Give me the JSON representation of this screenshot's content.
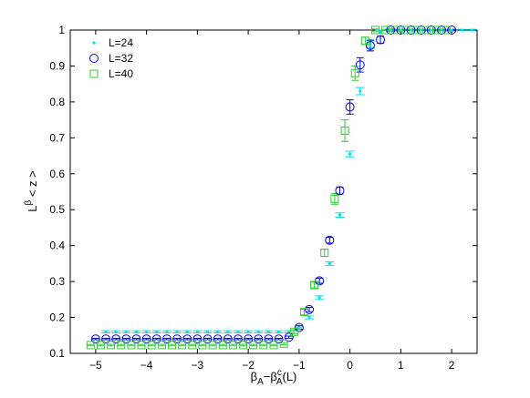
{
  "chart_data": {
    "type": "scatter",
    "title": "",
    "xlabel": {
      "base": "β",
      "sub1": "A",
      "mid": "−β",
      "sup": "c",
      "sub2": "A",
      "tail": "(L)"
    },
    "ylabel": {
      "pre": "L",
      "sup": "β",
      "post": " < z >"
    },
    "xlim": [
      -5.5,
      2.5
    ],
    "ylim": [
      0.1,
      1.0
    ],
    "xticks": [
      -5,
      -4,
      -3,
      -2,
      -1,
      0,
      1,
      2
    ],
    "xtick_labels": [
      "−5",
      "−4",
      "−3",
      "−2",
      "−1",
      "0",
      "1",
      "2"
    ],
    "yticks": [
      0.1,
      0.2,
      0.3,
      0.4,
      0.5,
      0.6,
      0.7,
      0.8,
      0.9,
      1.0
    ],
    "ytick_labels": [
      "0.1",
      "0.2",
      "0.3",
      "0.4",
      "0.5",
      "0.6",
      "0.7",
      "0.8",
      "0.9",
      "1"
    ],
    "grid": false,
    "legend_position": "top-left",
    "series": [
      {
        "name": "L=24",
        "marker": "dot",
        "color": "#00e5e5",
        "points": [
          [
            -4.8,
            0.16
          ],
          [
            -4.6,
            0.16
          ],
          [
            -4.4,
            0.16
          ],
          [
            -4.2,
            0.16
          ],
          [
            -4.0,
            0.16
          ],
          [
            -3.8,
            0.16
          ],
          [
            -3.6,
            0.16
          ],
          [
            -3.4,
            0.16
          ],
          [
            -3.2,
            0.16
          ],
          [
            -3.0,
            0.16
          ],
          [
            -2.8,
            0.16
          ],
          [
            -2.6,
            0.16
          ],
          [
            -2.4,
            0.16
          ],
          [
            -2.2,
            0.16
          ],
          [
            -2.0,
            0.16
          ],
          [
            -1.8,
            0.16
          ],
          [
            -1.6,
            0.16
          ],
          [
            -1.4,
            0.16
          ],
          [
            -1.2,
            0.16
          ],
          [
            -1.0,
            0.17
          ],
          [
            -0.8,
            0.2
          ],
          [
            -0.6,
            0.255
          ],
          [
            -0.4,
            0.35
          ],
          [
            -0.2,
            0.485
          ],
          [
            0.0,
            0.655
          ],
          [
            0.2,
            0.83
          ],
          [
            0.4,
            0.96
          ],
          [
            0.6,
            0.995
          ],
          [
            0.8,
            1.0
          ],
          [
            1.0,
            1.0
          ],
          [
            1.2,
            1.0
          ],
          [
            1.4,
            1.0
          ],
          [
            1.6,
            1.0
          ],
          [
            1.8,
            1.0
          ],
          [
            2.0,
            1.0
          ],
          [
            2.2,
            1.0
          ],
          [
            2.4,
            1.0
          ]
        ],
        "errors": [
          0.003,
          0.003,
          0.003,
          0.003,
          0.003,
          0.003,
          0.003,
          0.003,
          0.003,
          0.003,
          0.003,
          0.003,
          0.003,
          0.003,
          0.003,
          0.003,
          0.003,
          0.003,
          0.003,
          0.003,
          0.004,
          0.005,
          0.005,
          0.006,
          0.008,
          0.01,
          0.01,
          0.005,
          0.002,
          0.002,
          0.002,
          0.002,
          0.002,
          0.002,
          0.002,
          0.002,
          0.002
        ]
      },
      {
        "name": "L=32",
        "marker": "circle",
        "color": "#0000ff",
        "points": [
          [
            -5.0,
            0.14
          ],
          [
            -4.8,
            0.14
          ],
          [
            -4.6,
            0.14
          ],
          [
            -4.4,
            0.14
          ],
          [
            -4.2,
            0.14
          ],
          [
            -4.0,
            0.14
          ],
          [
            -3.8,
            0.14
          ],
          [
            -3.6,
            0.14
          ],
          [
            -3.4,
            0.14
          ],
          [
            -3.2,
            0.14
          ],
          [
            -3.0,
            0.14
          ],
          [
            -2.8,
            0.14
          ],
          [
            -2.6,
            0.14
          ],
          [
            -2.4,
            0.14
          ],
          [
            -2.2,
            0.14
          ],
          [
            -2.0,
            0.14
          ],
          [
            -1.8,
            0.14
          ],
          [
            -1.6,
            0.14
          ],
          [
            -1.4,
            0.14
          ],
          [
            -1.2,
            0.145
          ],
          [
            -1.0,
            0.172
          ],
          [
            -0.8,
            0.222
          ],
          [
            -0.6,
            0.302
          ],
          [
            -0.4,
            0.415
          ],
          [
            -0.2,
            0.553
          ],
          [
            0.0,
            0.786
          ],
          [
            0.2,
            0.903
          ],
          [
            0.4,
            0.957
          ],
          [
            0.6,
            0.973
          ],
          [
            0.8,
            1.0
          ],
          [
            1.0,
            1.0
          ],
          [
            1.2,
            1.0
          ],
          [
            1.4,
            1.0
          ],
          [
            1.6,
            1.0
          ],
          [
            1.8,
            1.0
          ],
          [
            2.0,
            1.0
          ]
        ],
        "errors": [
          0.002,
          0.002,
          0.002,
          0.002,
          0.002,
          0.002,
          0.002,
          0.002,
          0.002,
          0.002,
          0.002,
          0.002,
          0.002,
          0.002,
          0.002,
          0.002,
          0.002,
          0.002,
          0.002,
          0.003,
          0.005,
          0.006,
          0.007,
          0.008,
          0.01,
          0.02,
          0.02,
          0.015,
          0.01,
          0.003,
          0.002,
          0.002,
          0.002,
          0.002,
          0.002,
          0.002
        ]
      },
      {
        "name": "L=40",
        "marker": "square",
        "color": "#33cc33",
        "points": [
          [
            -5.1,
            0.123
          ],
          [
            -4.9,
            0.123
          ],
          [
            -4.7,
            0.123
          ],
          [
            -4.5,
            0.123
          ],
          [
            -4.3,
            0.123
          ],
          [
            -4.1,
            0.123
          ],
          [
            -3.9,
            0.123
          ],
          [
            -3.7,
            0.123
          ],
          [
            -3.5,
            0.123
          ],
          [
            -3.3,
            0.123
          ],
          [
            -3.1,
            0.123
          ],
          [
            -2.9,
            0.123
          ],
          [
            -2.7,
            0.123
          ],
          [
            -2.5,
            0.123
          ],
          [
            -2.3,
            0.123
          ],
          [
            -2.1,
            0.123
          ],
          [
            -1.9,
            0.123
          ],
          [
            -1.7,
            0.123
          ],
          [
            -1.5,
            0.123
          ],
          [
            -1.3,
            0.127
          ],
          [
            -1.1,
            0.16
          ],
          [
            -0.9,
            0.215
          ],
          [
            -0.7,
            0.29
          ],
          [
            -0.5,
            0.38
          ],
          [
            -0.3,
            0.53
          ],
          [
            -0.1,
            0.72
          ],
          [
            0.1,
            0.88
          ],
          [
            0.3,
            0.97
          ],
          [
            0.5,
            1.0
          ],
          [
            0.7,
            1.0
          ],
          [
            0.9,
            1.0
          ],
          [
            1.1,
            1.0
          ],
          [
            1.3,
            1.0
          ],
          [
            1.5,
            1.0
          ],
          [
            1.7,
            1.0
          ],
          [
            1.9,
            1.0
          ]
        ],
        "errors": [
          0.002,
          0.002,
          0.002,
          0.002,
          0.002,
          0.002,
          0.002,
          0.002,
          0.002,
          0.002,
          0.002,
          0.002,
          0.002,
          0.002,
          0.002,
          0.002,
          0.002,
          0.002,
          0.002,
          0.003,
          0.005,
          0.008,
          0.008,
          0.01,
          0.015,
          0.03,
          0.02,
          0.01,
          0.003,
          0.002,
          0.002,
          0.002,
          0.002,
          0.002,
          0.002,
          0.002
        ]
      }
    ]
  }
}
